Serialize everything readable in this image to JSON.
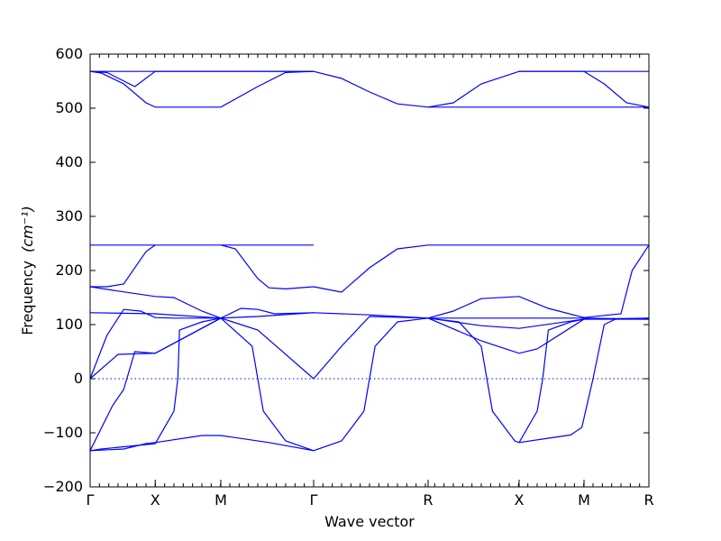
{
  "chart_data": {
    "type": "line",
    "xlabel": "Wave vector",
    "ylabel": "Frequency",
    "ylabel_unit": "(cm⁻¹)",
    "ylim": [
      -200,
      600
    ],
    "yticks": [
      -200,
      -100,
      0,
      100,
      200,
      300,
      400,
      500,
      600
    ],
    "x_labels": [
      "Γ",
      "X",
      "M",
      "Γ",
      "R",
      "X",
      "M",
      "R"
    ],
    "x_label_positions": [
      0,
      0.1165,
      0.2339,
      0.4,
      0.6048,
      0.7677,
      0.8839,
      1.0
    ],
    "grid": false,
    "zero_line": "dotted",
    "series": [
      {
        "x": [
          0,
          0.1165,
          0.2339,
          0.4
        ],
        "y": [
          568,
          568,
          568,
          568
        ]
      },
      {
        "x": [
          0,
          0.02,
          0.06,
          0.1,
          0.1165,
          0.15,
          0.2,
          0.2339,
          0.3,
          0.35,
          0.4
        ],
        "y": [
          568,
          565,
          545,
          510,
          502,
          502,
          502,
          502,
          540,
          566,
          568
        ]
      },
      {
        "x": [
          0,
          0.03,
          0.08,
          0.1165,
          0.15,
          0.2,
          0.2339,
          0.3,
          0.35,
          0.4
        ],
        "y": [
          568,
          566,
          540,
          568,
          568,
          568,
          568,
          568,
          568,
          568
        ]
      },
      {
        "x": [
          0.4,
          0.45,
          0.5,
          0.55,
          0.6048
        ],
        "y": [
          568,
          555,
          530,
          508,
          502
        ]
      },
      {
        "x": [
          0.6048,
          0.65,
          0.7,
          0.7677,
          0.8,
          0.8839,
          0.92,
          0.96,
          1.0
        ],
        "y": [
          502,
          510,
          545,
          568,
          568,
          568,
          545,
          510,
          502
        ]
      },
      {
        "x": [
          0.6048,
          0.7677,
          0.78,
          0.82,
          0.86,
          0.8839,
          1.0
        ],
        "y": [
          502,
          502,
          502,
          502,
          502,
          502,
          502
        ]
      },
      {
        "x": [
          0.7677,
          0.8839,
          1.0
        ],
        "y": [
          568,
          568,
          568
        ]
      },
      {
        "x": [
          0,
          0.1165,
          0.2339,
          0.4
        ],
        "y": [
          247,
          247,
          247,
          247
        ]
      },
      {
        "x": [
          0,
          0.03,
          0.06,
          0.1,
          0.1165
        ],
        "y": [
          170,
          170,
          175,
          235,
          247
        ]
      },
      {
        "x": [
          0.2339,
          0.26,
          0.3,
          0.32,
          0.35,
          0.4,
          0.45
        ],
        "y": [
          247,
          240,
          185,
          168,
          166,
          170,
          160
        ]
      },
      {
        "x": [
          0.45,
          0.5,
          0.55,
          0.6048,
          0.7677,
          0.8839,
          1.0
        ],
        "y": [
          160,
          205,
          240,
          247,
          247,
          247,
          247
        ]
      },
      {
        "x": [
          0,
          0.05,
          0.1165,
          0.15,
          0.2,
          0.2339
        ],
        "y": [
          170,
          162,
          152,
          150,
          125,
          112
        ]
      },
      {
        "x": [
          0.6048,
          0.65,
          0.7,
          0.7677,
          0.82,
          0.8839
        ],
        "y": [
          112,
          125,
          148,
          152,
          130,
          113
        ]
      },
      {
        "x": [
          0.8839,
          0.95,
          0.97,
          1.0
        ],
        "y": [
          113,
          120,
          200,
          247
        ]
      },
      {
        "x": [
          0,
          0.1165,
          0.2339,
          0.3,
          0.4,
          0.5,
          0.6048,
          0.7677,
          0.8839,
          1.0
        ],
        "y": [
          122,
          120,
          112,
          115,
          122,
          118,
          112,
          112,
          112,
          110
        ]
      },
      {
        "x": [
          0,
          0.05,
          0.1165,
          0.2339,
          0.3,
          0.4,
          0.45,
          0.5,
          0.6048
        ],
        "y": [
          0,
          45,
          47,
          112,
          90,
          0,
          60,
          115,
          112
        ]
      },
      {
        "x": [
          0,
          0.03,
          0.06,
          0.09,
          0.1165,
          0.15,
          0.2339
        ],
        "y": [
          0,
          80,
          128,
          125,
          113,
          112,
          112
        ]
      },
      {
        "x": [
          0.2339,
          0.27,
          0.3,
          0.33,
          0.4
        ],
        "y": [
          112,
          130,
          128,
          120,
          122
        ]
      },
      {
        "x": [
          0,
          0.06,
          0.1,
          0.1165,
          0.2,
          0.2339,
          0.32,
          0.4
        ],
        "y": [
          -133,
          -130,
          -120,
          -118,
          -105,
          -105,
          -118,
          -133
        ]
      },
      {
        "x": [
          0,
          0.04,
          0.06,
          0.08,
          0.1165,
          0.2339
        ],
        "y": [
          -133,
          -50,
          -20,
          50,
          47,
          112
        ]
      },
      {
        "x": [
          0,
          0.02,
          0.1165,
          0.15,
          0.157,
          0.16,
          0.2,
          0.2339
        ],
        "y": [
          -133,
          -130,
          -120,
          -60,
          0,
          90,
          105,
          112
        ]
      },
      {
        "x": [
          0.2339,
          0.29,
          0.3,
          0.31,
          0.35,
          0.4
        ],
        "y": [
          112,
          60,
          0,
          -60,
          -115,
          -133
        ]
      },
      {
        "x": [
          0.4,
          0.45,
          0.49,
          0.5,
          0.51,
          0.55,
          0.6048
        ],
        "y": [
          -133,
          -115,
          -60,
          0,
          60,
          105,
          112
        ]
      },
      {
        "x": [
          0.6048,
          0.66,
          0.7,
          0.71,
          0.72,
          0.76,
          0.7677
        ],
        "y": [
          112,
          105,
          60,
          0,
          -60,
          -115,
          -118
        ]
      },
      {
        "x": [
          0.7677,
          0.8,
          0.81,
          0.82,
          0.86,
          0.8839
        ],
        "y": [
          -118,
          -60,
          0,
          90,
          105,
          110
        ]
      },
      {
        "x": [
          0.7677,
          0.82,
          0.86,
          0.88,
          0.9,
          0.92,
          0.94,
          1.0
        ],
        "y": [
          -118,
          -110,
          -104,
          -90,
          0,
          100,
          110,
          112
        ]
      },
      {
        "x": [
          0.6048,
          0.7,
          0.7677,
          0.8,
          0.8839,
          1.0
        ],
        "y": [
          112,
          70,
          47,
          55,
          110,
          112
        ]
      },
      {
        "x": [
          0.6048,
          0.7,
          0.7677,
          0.8839,
          1.0
        ],
        "y": [
          112,
          98,
          93,
          110,
          110
        ]
      }
    ]
  }
}
